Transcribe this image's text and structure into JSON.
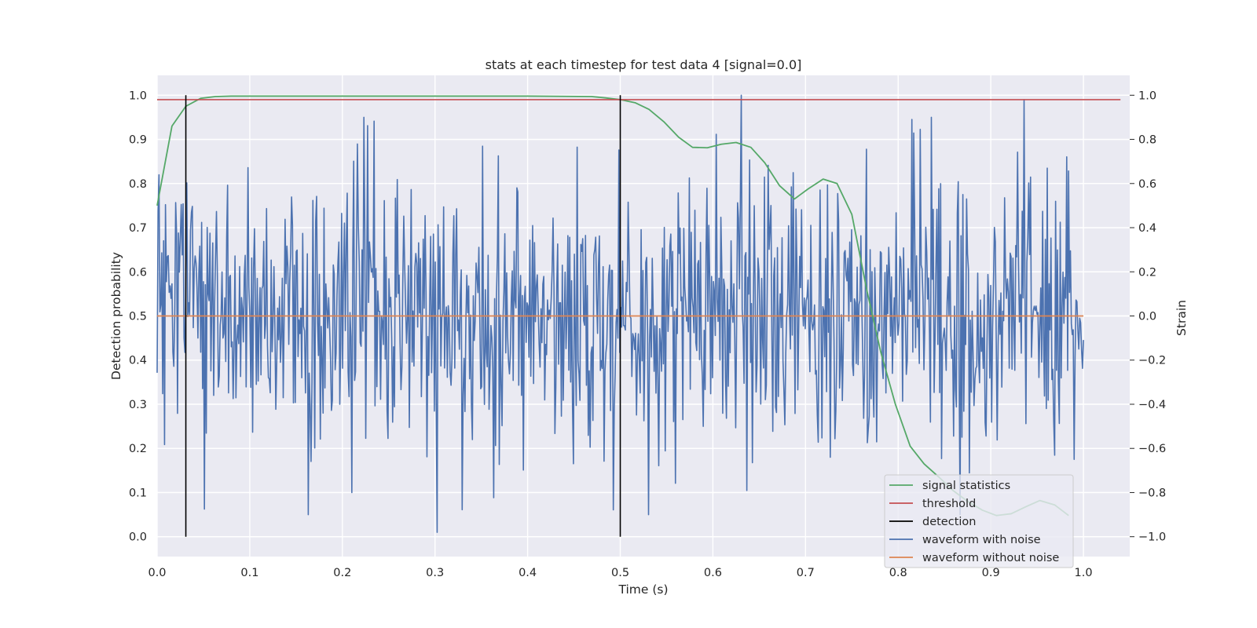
{
  "chart_data": {
    "type": "line",
    "title": "stats at each timestep for test data 4 [signal=0.0]",
    "xlabel": "Time (s)",
    "ylabel_left": "Detection probability",
    "ylabel_right": "Strain",
    "xlim": [
      0.0,
      1.05
    ],
    "ylim_left": [
      -0.045,
      1.045
    ],
    "ylim_right": [
      -1.09,
      1.09
    ],
    "x_ticks": [
      "0.0",
      "0.1",
      "0.2",
      "0.3",
      "0.4",
      "0.5",
      "0.6",
      "0.7",
      "0.8",
      "0.9",
      "1.0"
    ],
    "y_ticks_left": [
      "0.0",
      "0.1",
      "0.2",
      "0.3",
      "0.4",
      "0.5",
      "0.6",
      "0.7",
      "0.8",
      "0.9",
      "1.0"
    ],
    "y_ticks_right": [
      "−1.0",
      "−0.8",
      "−0.6",
      "−0.4",
      "−0.2",
      "0.0",
      "0.2",
      "0.4",
      "0.6",
      "0.8",
      "1.0"
    ],
    "grid": true,
    "legend_position": "lower-right",
    "colors": {
      "signal_statistics": "#55a868",
      "threshold": "#c44e52",
      "detection": "#000000",
      "waveform_with_noise": "#4c72b0",
      "waveform_without_noise": "#dd8452",
      "plot_background": "#eaeaf2",
      "grid": "#ffffff"
    },
    "series": [
      {
        "name": "signal statistics",
        "axis": "left",
        "x": [
          0.0,
          0.016,
          0.031,
          0.047,
          0.063,
          0.08,
          0.2,
          0.3,
          0.4,
          0.469,
          0.484,
          0.5,
          0.516,
          0.531,
          0.547,
          0.563,
          0.578,
          0.594,
          0.609,
          0.625,
          0.641,
          0.656,
          0.672,
          0.688,
          0.703,
          0.719,
          0.734,
          0.75,
          0.766,
          0.781,
          0.797,
          0.813,
          0.828,
          0.844,
          0.859,
          0.875,
          0.891,
          0.906,
          0.922,
          0.938,
          0.953,
          0.969,
          0.984
        ],
        "y": [
          0.75,
          0.93,
          0.975,
          0.993,
          0.997,
          0.998,
          0.998,
          0.998,
          0.998,
          0.997,
          0.994,
          0.99,
          0.983,
          0.968,
          0.94,
          0.905,
          0.882,
          0.881,
          0.889,
          0.893,
          0.882,
          0.847,
          0.795,
          0.765,
          0.788,
          0.81,
          0.8,
          0.73,
          0.56,
          0.42,
          0.3,
          0.205,
          0.165,
          0.135,
          0.105,
          0.08,
          0.06,
          0.048,
          0.052,
          0.068,
          0.082,
          0.072,
          0.048
        ]
      },
      {
        "name": "threshold",
        "axis": "left",
        "x": [
          0.0,
          1.04
        ],
        "y": [
          0.99,
          0.99
        ]
      },
      {
        "name": "detection",
        "axis": "left",
        "type": "vlines",
        "x": [
          0.031,
          0.5
        ],
        "y_range": [
          0.0,
          1.0
        ]
      },
      {
        "name": "waveform with noise",
        "axis": "right",
        "x_range": [
          0.0,
          1.0
        ],
        "n_points": 1000,
        "y_min": -0.98,
        "y_max": 1.0,
        "y_std": 0.3
      },
      {
        "name": "waveform without noise",
        "axis": "right",
        "x": [
          0.0,
          1.0
        ],
        "y": [
          0.0,
          0.0
        ]
      }
    ]
  }
}
